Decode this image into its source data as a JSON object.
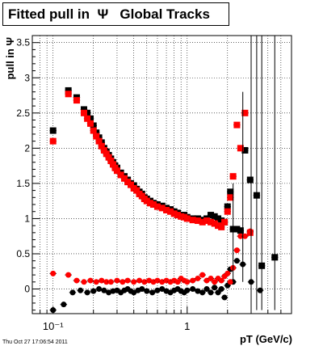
{
  "title": "Fitted pull in  Ψ   Global Tracks",
  "timestamp": "Thu Oct 27 17:06:54 2011",
  "chart_data": {
    "type": "scatter",
    "title": "Fitted pull in  Ψ   Global Tracks",
    "xlabel": "pT (GeV/c)",
    "ylabel": "pull in Ψ",
    "xscale": "log",
    "xlim": [
      0.07,
      6.0
    ],
    "ylim": [
      -0.35,
      3.6
    ],
    "xticks": [
      {
        "value": 0.1,
        "label": "10⁻¹"
      },
      {
        "value": 1,
        "label": "1"
      }
    ],
    "yticks": [
      {
        "value": 0,
        "label": "0"
      },
      {
        "value": 0.5,
        "label": "0.5"
      },
      {
        "value": 1,
        "label": "1"
      },
      {
        "value": 1.5,
        "label": "1.5"
      },
      {
        "value": 2,
        "label": "2"
      },
      {
        "value": 2.5,
        "label": "2.5"
      },
      {
        "value": 3,
        "label": "3"
      },
      {
        "value": 3.5,
        "label": "3.5"
      }
    ],
    "grid": true,
    "series": [
      {
        "color": "#000000",
        "marker": "square",
        "x": [
          0.1,
          0.13,
          0.15,
          0.17,
          0.18,
          0.19,
          0.2,
          0.21,
          0.22,
          0.23,
          0.24,
          0.25,
          0.26,
          0.27,
          0.28,
          0.29,
          0.3,
          0.32,
          0.34,
          0.36,
          0.38,
          0.4,
          0.42,
          0.44,
          0.46,
          0.48,
          0.5,
          0.53,
          0.56,
          0.6,
          0.65,
          0.7,
          0.75,
          0.8,
          0.85,
          0.9,
          0.95,
          1.0,
          1.1,
          1.2,
          1.3,
          1.4,
          1.5,
          1.6,
          1.7,
          1.8,
          1.9,
          2.0,
          2.1,
          2.2,
          2.35,
          2.5,
          2.7,
          2.95,
          3.3,
          3.6,
          4.5
        ],
        "y": [
          2.25,
          2.82,
          2.72,
          2.55,
          2.5,
          2.42,
          2.32,
          2.22,
          2.15,
          2.08,
          2.0,
          1.95,
          1.9,
          1.85,
          1.8,
          1.75,
          1.72,
          1.65,
          1.6,
          1.55,
          1.5,
          1.47,
          1.42,
          1.38,
          1.35,
          1.3,
          1.28,
          1.25,
          1.22,
          1.2,
          1.18,
          1.15,
          1.13,
          1.1,
          1.08,
          1.05,
          1.05,
          1.02,
          1.0,
          1.0,
          0.98,
          1.0,
          1.05,
          1.03,
          1.0,
          0.97,
          0.95,
          1.17,
          1.38,
          0.85,
          0.85,
          0.83,
          1.97,
          1.55,
          1.33,
          0.33,
          0.45
        ]
      },
      {
        "color": "#ff0000",
        "marker": "square",
        "x": [
          0.1,
          0.13,
          0.15,
          0.17,
          0.18,
          0.19,
          0.2,
          0.21,
          0.22,
          0.23,
          0.24,
          0.25,
          0.26,
          0.27,
          0.28,
          0.29,
          0.3,
          0.32,
          0.34,
          0.36,
          0.38,
          0.4,
          0.42,
          0.44,
          0.46,
          0.48,
          0.5,
          0.53,
          0.56,
          0.6,
          0.65,
          0.7,
          0.75,
          0.8,
          0.85,
          0.9,
          0.95,
          1.0,
          1.1,
          1.2,
          1.3,
          1.4,
          1.5,
          1.6,
          1.7,
          1.8,
          1.9,
          2.0,
          2.1,
          2.2,
          2.35,
          2.5,
          2.7,
          2.95
        ],
        "y": [
          2.1,
          2.77,
          2.68,
          2.5,
          2.42,
          2.35,
          2.25,
          2.17,
          2.1,
          2.03,
          1.97,
          1.92,
          1.87,
          1.82,
          1.77,
          1.72,
          1.68,
          1.62,
          1.57,
          1.52,
          1.48,
          1.43,
          1.4,
          1.35,
          1.32,
          1.28,
          1.25,
          1.22,
          1.2,
          1.17,
          1.15,
          1.12,
          1.1,
          1.07,
          1.05,
          1.03,
          1.02,
          1.0,
          0.98,
          0.97,
          0.95,
          0.97,
          0.95,
          0.93,
          0.9,
          0.88,
          0.95,
          1.1,
          1.3,
          1.6,
          2.33,
          2.0,
          2.5,
          0.8
        ]
      },
      {
        "color": "#000000",
        "marker": "circle",
        "x": [
          0.1,
          0.12,
          0.14,
          0.16,
          0.18,
          0.2,
          0.22,
          0.24,
          0.26,
          0.28,
          0.3,
          0.32,
          0.34,
          0.36,
          0.38,
          0.4,
          0.43,
          0.46,
          0.5,
          0.55,
          0.6,
          0.65,
          0.7,
          0.75,
          0.8,
          0.85,
          0.9,
          0.95,
          1.0,
          1.1,
          1.2,
          1.3,
          1.4,
          1.5,
          1.6,
          1.7,
          1.8,
          1.9,
          2.0,
          2.1,
          2.2,
          2.35,
          2.6,
          3.0,
          3.5
        ],
        "y": [
          -0.3,
          -0.22,
          -0.05,
          -0.02,
          -0.05,
          -0.03,
          0.0,
          -0.02,
          -0.05,
          -0.03,
          -0.02,
          -0.05,
          -0.02,
          0.0,
          -0.03,
          -0.05,
          -0.02,
          0.0,
          -0.03,
          -0.05,
          -0.02,
          0.0,
          -0.03,
          -0.05,
          -0.02,
          0.0,
          -0.03,
          -0.05,
          -0.02,
          0.0,
          -0.03,
          -0.05,
          0.0,
          -0.05,
          0.02,
          -0.05,
          0.0,
          -0.12,
          0.05,
          0.28,
          0.1,
          0.4,
          0.35,
          0.1,
          -0.02
        ]
      },
      {
        "color": "#ff0000",
        "marker": "circle",
        "x": [
          0.1,
          0.13,
          0.15,
          0.17,
          0.19,
          0.21,
          0.23,
          0.25,
          0.27,
          0.3,
          0.33,
          0.36,
          0.4,
          0.44,
          0.48,
          0.52,
          0.56,
          0.6,
          0.65,
          0.7,
          0.75,
          0.8,
          0.85,
          0.9,
          0.95,
          1.0,
          1.1,
          1.2,
          1.3,
          1.4,
          1.5,
          1.6,
          1.7,
          1.8,
          1.9,
          2.0,
          2.1,
          2.2,
          2.35,
          2.5,
          2.7,
          2.95
        ],
        "y": [
          0.22,
          0.2,
          0.12,
          0.1,
          0.12,
          0.1,
          0.12,
          0.1,
          0.1,
          0.12,
          0.1,
          0.12,
          0.1,
          0.12,
          0.1,
          0.12,
          0.1,
          0.12,
          0.1,
          0.12,
          0.1,
          0.12,
          0.1,
          0.15,
          0.12,
          0.1,
          0.12,
          0.15,
          0.2,
          0.12,
          0.15,
          0.1,
          0.15,
          0.12,
          0.18,
          0.22,
          0.1,
          0.3,
          0.55,
          0.75,
          0.75,
          0.82
        ]
      }
    ]
  }
}
